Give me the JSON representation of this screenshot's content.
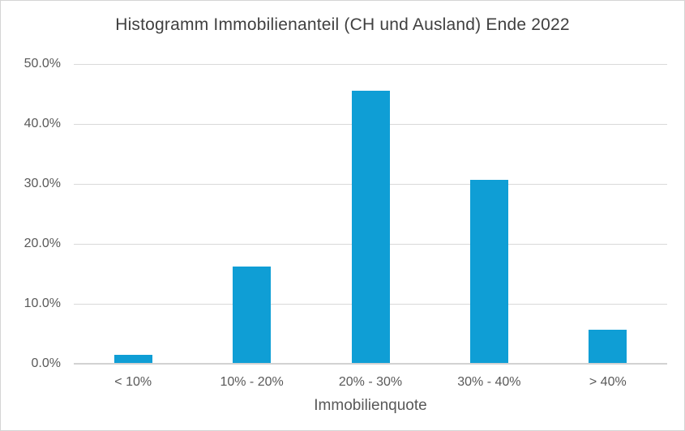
{
  "chart_data": {
    "type": "bar",
    "title": "Histogramm Immobilienanteil (CH und Ausland) Ende 2022",
    "categories": [
      "< 10%",
      "10% - 20%",
      "20% - 30%",
      "30% - 40%",
      "> 40%"
    ],
    "values": [
      1.5,
      16.2,
      45.6,
      30.7,
      5.7
    ],
    "xlabel": "Immobilienquote",
    "ylabel": "",
    "ylim": [
      0,
      50
    ],
    "ytick_step": 10,
    "ytick_labels": [
      "0.0%",
      "10.0%",
      "20.0%",
      "30.0%",
      "40.0%",
      "50.0%"
    ],
    "grid": true,
    "legend": false,
    "colors": {
      "bar": "#0F9ED5",
      "gridline": "#D9D9D9",
      "axis_line": "#D2D2D2",
      "title_text": "#404040",
      "label_text": "#595959",
      "chart_border": "#D5D5D5",
      "background": "#FFFFFF"
    }
  }
}
